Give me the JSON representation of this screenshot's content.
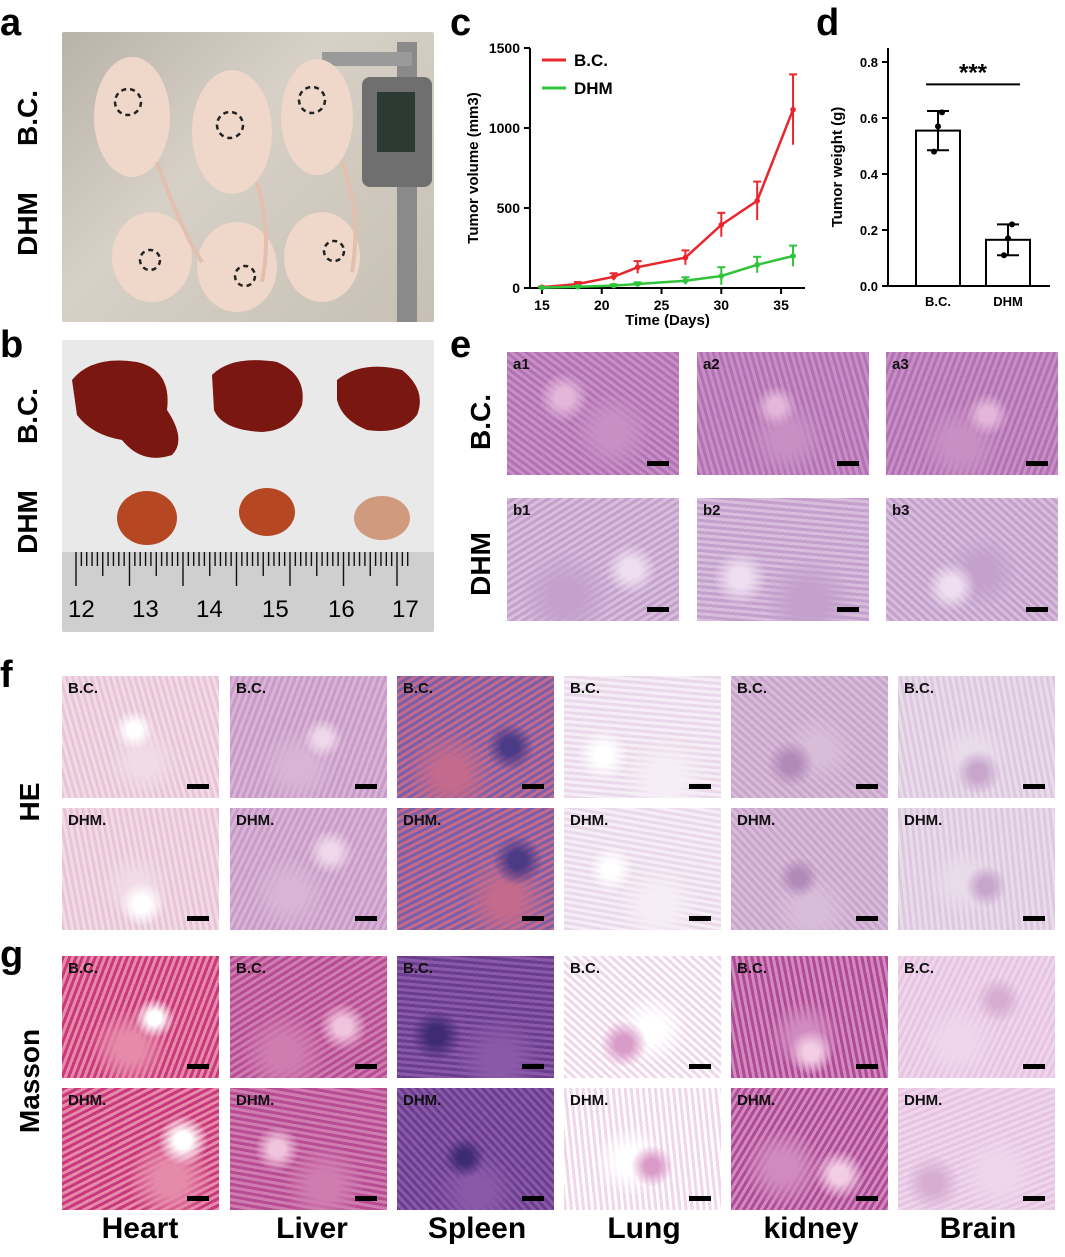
{
  "panels": {
    "a": {
      "letter": "a",
      "rows": [
        "B.C.",
        "DHM"
      ]
    },
    "b": {
      "letter": "b",
      "rows": [
        "B.C.",
        "DHM"
      ],
      "ruler_ticks": [
        "12",
        "13",
        "14",
        "15",
        "16",
        "17"
      ]
    },
    "c": {
      "letter": "c"
    },
    "d": {
      "letter": "d"
    },
    "e": {
      "letter": "e",
      "rows": [
        "B.C.",
        "DHM"
      ],
      "tiles": [
        [
          "a1",
          "a2",
          "a3"
        ],
        [
          "b1",
          "b2",
          "b3"
        ]
      ]
    },
    "f": {
      "letter": "f",
      "row_label": "HE",
      "top_label": "B.C.",
      "bottom_label": "DHM."
    },
    "g": {
      "letter": "g",
      "row_label": "Masson",
      "top_label": "B.C.",
      "bottom_label": "DHM."
    }
  },
  "organs": [
    "Heart",
    "Liver",
    "Spleen",
    "Lung",
    "kidney",
    "Brain"
  ],
  "colors": {
    "bc_line": "#e8262b",
    "dhm_line": "#2fc43a",
    "he_pink": "#d9a8c8",
    "masson_purple": "#b06aaa"
  },
  "chart_data": [
    {
      "type": "line",
      "panel": "c",
      "xlabel": "Time (Days)",
      "ylabel": "Tumor volume (mm3)",
      "xlim": [
        14,
        37
      ],
      "ylim": [
        0,
        1500
      ],
      "xticks": [
        15,
        20,
        25,
        30,
        35
      ],
      "yticks": [
        0,
        500,
        1000,
        1500
      ],
      "legend_position": "top-left",
      "x": [
        15,
        18,
        21,
        23,
        27,
        30,
        33,
        36
      ],
      "series": [
        {
          "name": "B.C.",
          "color": "#e8262b",
          "values": [
            5,
            25,
            70,
            130,
            190,
            395,
            545,
            1115
          ],
          "errors": [
            4,
            12,
            22,
            38,
            45,
            75,
            120,
            220
          ]
        },
        {
          "name": "DHM",
          "color": "#2fc43a",
          "values": [
            2,
            8,
            15,
            25,
            45,
            75,
            145,
            200
          ],
          "errors": [
            2,
            5,
            8,
            10,
            22,
            55,
            50,
            65
          ]
        }
      ]
    },
    {
      "type": "bar",
      "panel": "d",
      "categories": [
        "B.C.",
        "DHM"
      ],
      "values": [
        0.555,
        0.165
      ],
      "errors": [
        0.07,
        0.055
      ],
      "points": [
        [
          0.48,
          0.57,
          0.62
        ],
        [
          0.11,
          0.17,
          0.22
        ]
      ],
      "ylabel": "Tumor weight (g)",
      "ylim": [
        0,
        0.85
      ],
      "yticks": [
        "0.0",
        "0.2",
        "0.4",
        "0.6",
        "0.8"
      ],
      "annotation": "***"
    }
  ]
}
